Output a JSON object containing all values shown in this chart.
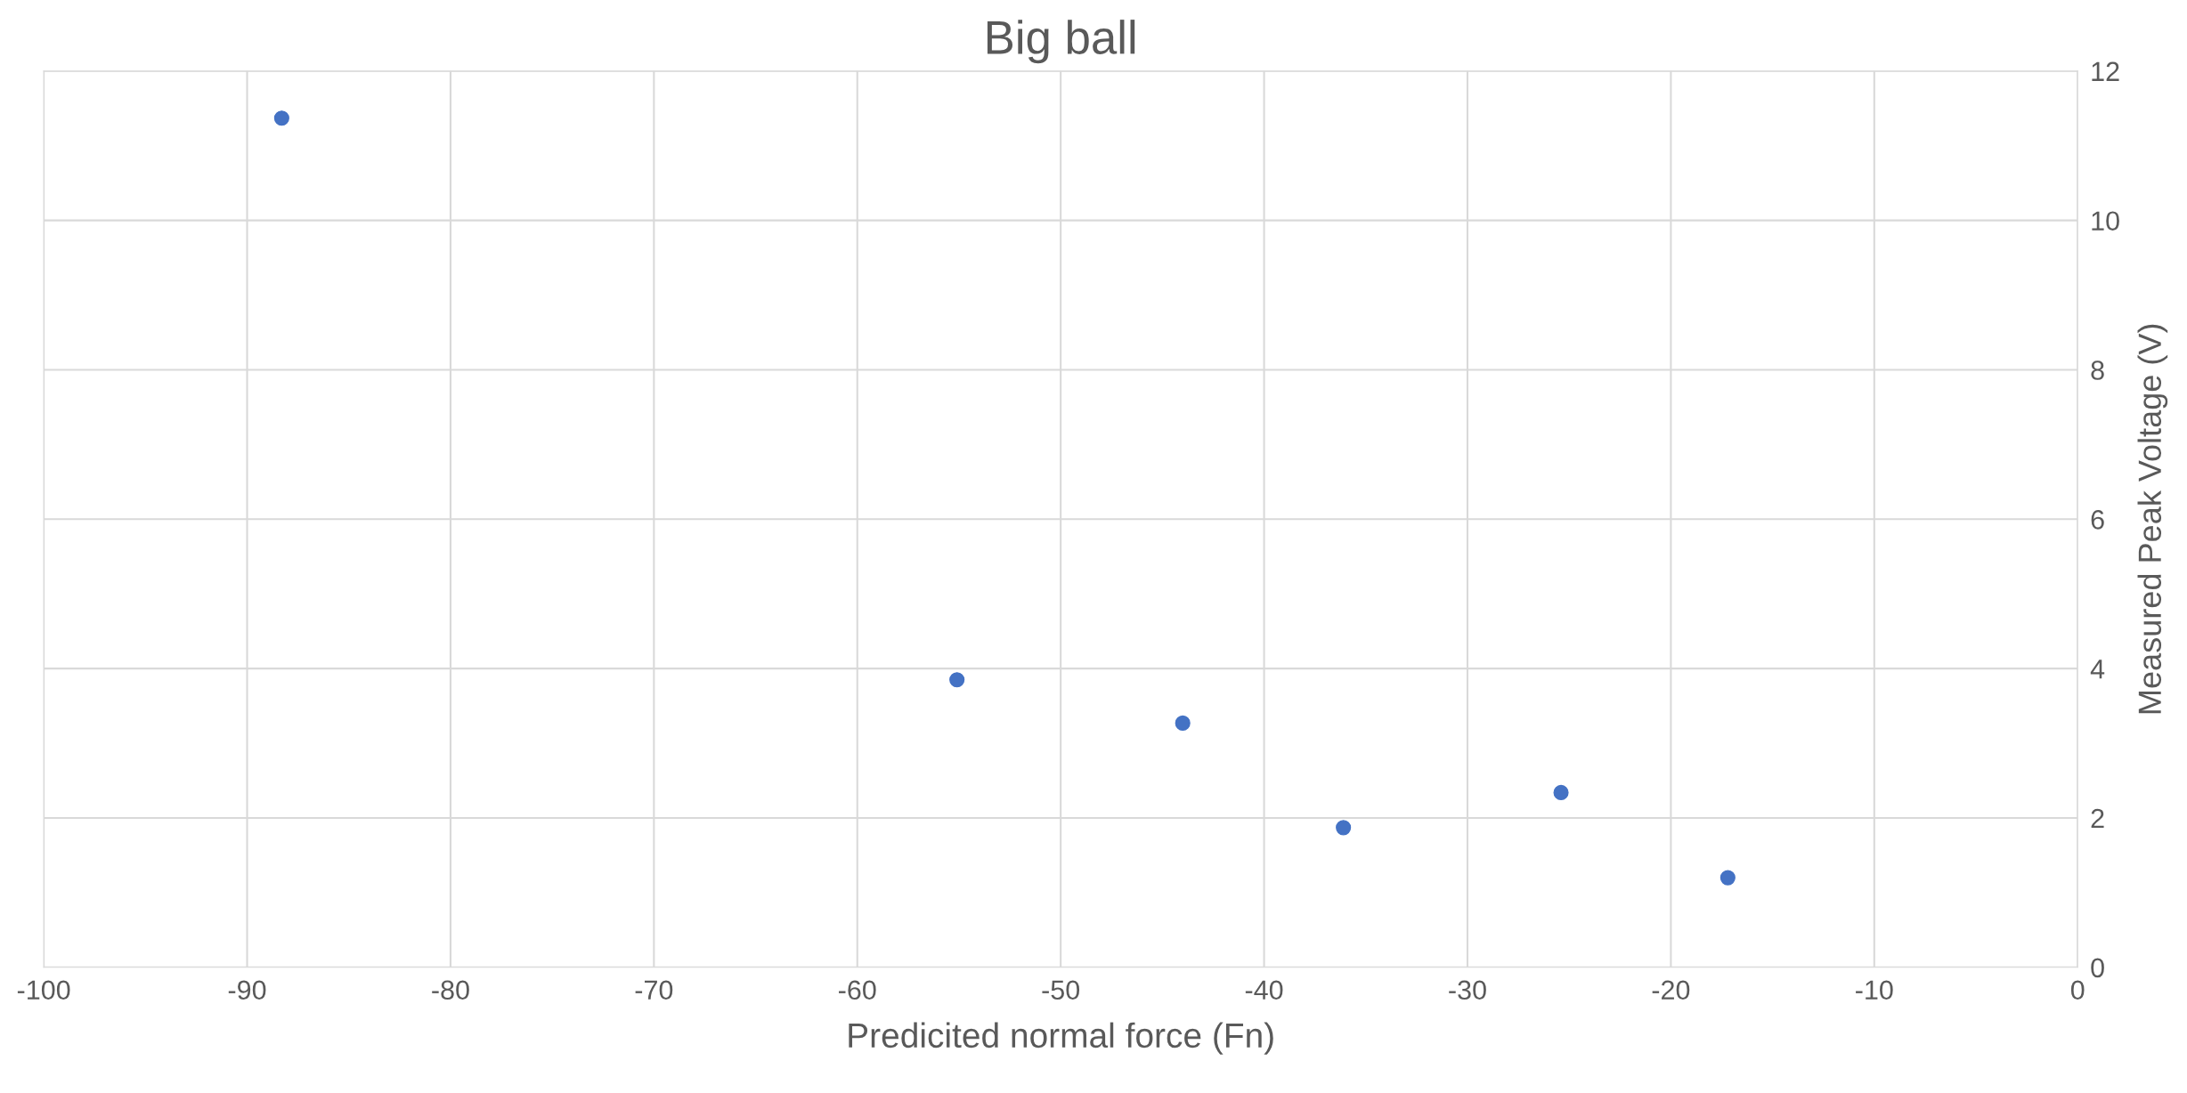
{
  "chart_data": {
    "type": "scatter",
    "title": "Big ball",
    "xlabel": "Predicited normal force (Fn)",
    "ylabel": "Measured Peak Voltage (V)",
    "x": [
      -88.3,
      -55.1,
      -44.0,
      -36.1,
      -25.4,
      -17.2
    ],
    "series": [
      {
        "color": "#4472c4",
        "values": [
          11.37,
          3.85,
          3.27,
          1.87,
          2.34,
          1.2
        ]
      }
    ],
    "xlim": [
      -100,
      0
    ],
    "xticks": [
      -100,
      -90,
      -80,
      -70,
      -60,
      -50,
      -40,
      -30,
      -20,
      -10,
      0
    ],
    "ylim": [
      0,
      12
    ],
    "yticks": [
      0,
      2,
      4,
      6,
      8,
      10,
      12
    ],
    "grid": true,
    "marker": "circle"
  }
}
